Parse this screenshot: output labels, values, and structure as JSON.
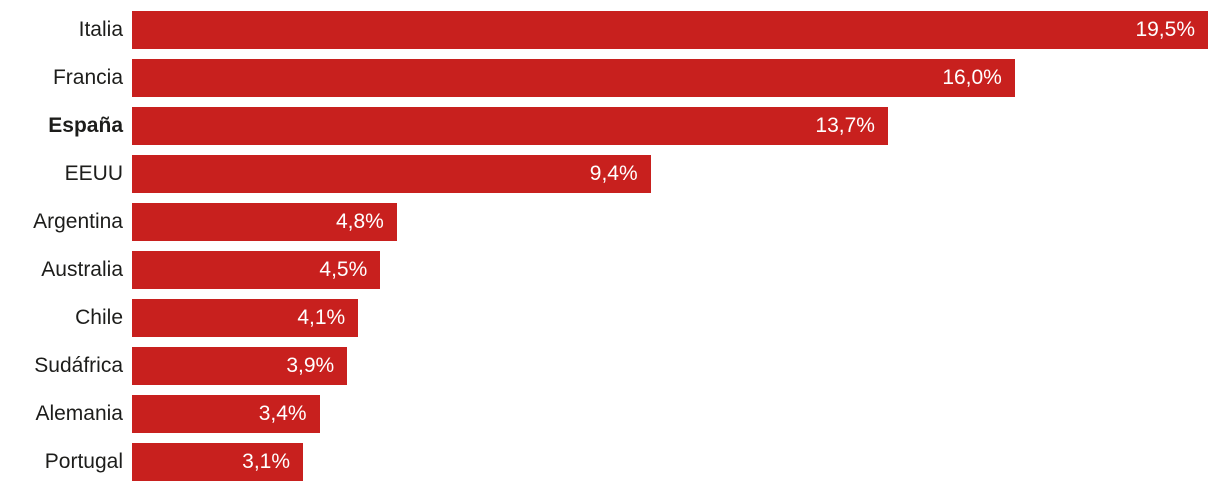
{
  "chart_data": {
    "type": "bar",
    "orientation": "horizontal",
    "title": "",
    "xlabel": "",
    "ylabel": "",
    "grid": false,
    "legend": false,
    "xlim": [
      0,
      19.5
    ],
    "categories": [
      "Italia",
      "Francia",
      "España",
      "EEUU",
      "Argentina",
      "Australia",
      "Chile",
      "Sudáfrica",
      "Alemania",
      "Portugal"
    ],
    "values": [
      19.5,
      16.0,
      13.7,
      9.4,
      4.8,
      4.5,
      4.1,
      3.9,
      3.4,
      3.1
    ],
    "value_labels": [
      "19,5%",
      "16,0%",
      "13,7%",
      "9,4%",
      "4,8%",
      "4,5%",
      "4,1%",
      "3,9%",
      "3,4%",
      "3,1%"
    ],
    "emphasized_category": "España",
    "colors": {
      "bar": "#c8201e",
      "category_label": "#1d1d1b",
      "value_label": "#ffffff",
      "background": "#ffffff"
    }
  }
}
